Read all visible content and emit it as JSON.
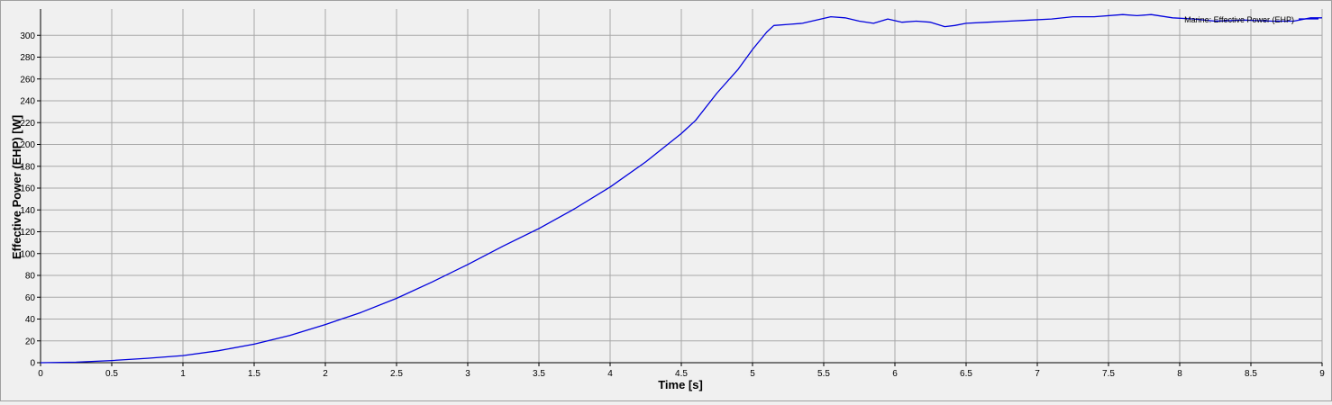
{
  "chart_data": {
    "type": "line",
    "title": "",
    "xlabel": "Time [s]",
    "ylabel": "Effective Power (EHP) [W]",
    "xlim": [
      0,
      9
    ],
    "ylim": [
      0,
      320
    ],
    "xticks": [
      0,
      0.5,
      1,
      1.5,
      2,
      2.5,
      3,
      3.5,
      4,
      4.5,
      5,
      5.5,
      6,
      6.5,
      7,
      7.5,
      8,
      8.5,
      9
    ],
    "xtick_labels": [
      "0",
      "0.5",
      "1",
      "1.5",
      "2",
      "2.5",
      "3",
      "3.5",
      "4",
      "4.5",
      "5",
      "5.5",
      "6",
      "6.5",
      "7",
      "7.5",
      "8",
      "8.5",
      "9"
    ],
    "yticks": [
      0,
      20,
      40,
      60,
      80,
      100,
      120,
      140,
      160,
      180,
      200,
      220,
      240,
      260,
      280,
      300
    ],
    "ytick_labels": [
      "0",
      "20",
      "40",
      "60",
      "80",
      "100",
      "120",
      "140",
      "160",
      "180",
      "200",
      "220",
      "240",
      "260",
      "280",
      "300"
    ],
    "grid": true,
    "legend_position": "top-right",
    "series": [
      {
        "name": "Marine: Effective Power (EHP)",
        "color": "#0000dd",
        "x": [
          0,
          0.25,
          0.5,
          0.75,
          1,
          1.25,
          1.5,
          1.75,
          2,
          2.25,
          2.5,
          2.75,
          3,
          3.25,
          3.5,
          3.75,
          4,
          4.25,
          4.5,
          4.6,
          4.75,
          4.9,
          5.0,
          5.1,
          5.15,
          5.25,
          5.35,
          5.45,
          5.55,
          5.65,
          5.75,
          5.85,
          5.95,
          6.05,
          6.15,
          6.25,
          6.35,
          6.42,
          6.5,
          6.65,
          6.8,
          6.95,
          7.1,
          7.25,
          7.4,
          7.6,
          7.7,
          7.8,
          7.95,
          8.1,
          8.25,
          8.45,
          8.65,
          8.8,
          8.92,
          9.0
        ],
        "y": [
          0,
          0.5,
          2,
          4,
          6.5,
          11,
          17,
          25,
          35,
          46,
          59,
          74,
          90,
          107,
          123,
          141,
          161,
          184,
          210,
          222,
          247,
          269,
          287,
          303,
          309,
          310,
          311,
          314,
          317,
          316,
          313,
          311,
          315,
          312,
          313,
          312,
          308,
          309,
          311,
          312,
          313,
          314,
          315,
          317,
          317,
          319,
          318,
          319,
          316,
          315,
          313,
          314,
          313,
          313,
          316,
          316
        ]
      }
    ]
  }
}
